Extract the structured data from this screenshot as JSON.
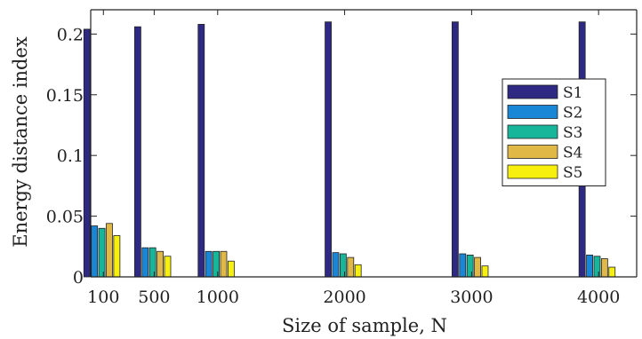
{
  "chart_data": {
    "type": "bar",
    "title": "",
    "xlabel": "Size of sample, N",
    "ylabel": "Energy distance index",
    "x": [
      100,
      500,
      1000,
      2000,
      3000,
      4000
    ],
    "x_tick_labels": [
      "100",
      "500",
      "1000",
      "2000",
      "3000",
      "4000"
    ],
    "ylim": [
      0,
      0.22
    ],
    "y_ticks": [
      0,
      0.05,
      0.1,
      0.15,
      0.2
    ],
    "y_tick_labels": [
      "0",
      "0.05",
      "0.1",
      "0.15",
      "0.2"
    ],
    "grid": false,
    "legend_position": "right",
    "series": [
      {
        "name": "S1",
        "color": "#2e2a83",
        "values": [
          0.204,
          0.206,
          0.208,
          0.21,
          0.21,
          0.21
        ]
      },
      {
        "name": "S2",
        "color": "#1a87d6",
        "values": [
          0.042,
          0.024,
          0.021,
          0.02,
          0.019,
          0.018
        ]
      },
      {
        "name": "S3",
        "color": "#17b69a",
        "values": [
          0.04,
          0.024,
          0.021,
          0.019,
          0.018,
          0.017
        ]
      },
      {
        "name": "S4",
        "color": "#e0b848",
        "values": [
          0.044,
          0.021,
          0.021,
          0.016,
          0.016,
          0.015
        ]
      },
      {
        "name": "S5",
        "color": "#f7f00e",
        "values": [
          0.034,
          0.017,
          0.013,
          0.01,
          0.009,
          0.008
        ]
      }
    ]
  }
}
